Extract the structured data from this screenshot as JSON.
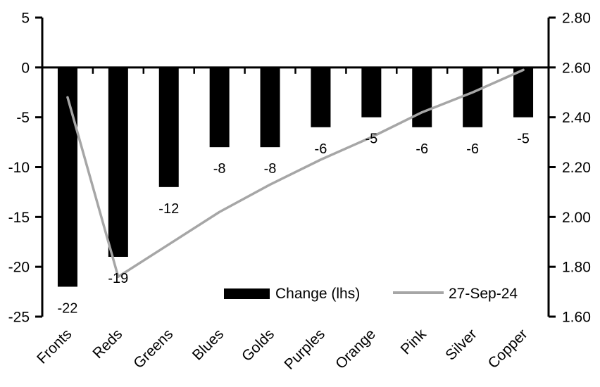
{
  "colors": {
    "bar": "#000000",
    "line": "#a6a6a6",
    "axis": "#000000",
    "text": "#000000",
    "background": "#ffffff"
  },
  "chart_data": {
    "type": "bar+line combo, dual axis",
    "title": "",
    "categories": [
      "Fronts",
      "Reds",
      "Greens",
      "Blues",
      "Golds",
      "Purples",
      "Orange",
      "Pink",
      "Silver",
      "Copper"
    ],
    "series": [
      {
        "name": "Change (lhs)",
        "type": "bar",
        "axis": "left",
        "color": "#000000",
        "values": [
          -22,
          -19,
          -12,
          -8,
          -8,
          -6,
          -5,
          -6,
          -6,
          -5
        ],
        "data_labels": [
          "-22",
          "-19",
          "-12",
          "-8",
          "-8",
          "-6",
          "-5",
          "-6",
          "-6",
          "-5"
        ]
      },
      {
        "name": "27-Sep-24",
        "type": "line",
        "axis": "right",
        "color": "#a6a6a6",
        "values": [
          2.48,
          1.76,
          1.89,
          2.02,
          2.13,
          2.23,
          2.32,
          2.42,
          2.5,
          2.59
        ]
      }
    ],
    "left_axis": {
      "min": -25,
      "max": 5,
      "ticks": [
        "5",
        "0",
        "-5",
        "-10",
        "-15",
        "-20",
        "-25"
      ],
      "tick_values": [
        5,
        0,
        -5,
        -10,
        -15,
        -20,
        -25
      ]
    },
    "right_axis": {
      "min": 1.6,
      "max": 2.8,
      "ticks": [
        "2.80",
        "2.60",
        "2.40",
        "2.20",
        "2.00",
        "1.80",
        "1.60"
      ],
      "tick_values": [
        2.8,
        2.6,
        2.4,
        2.2,
        2.0,
        1.8,
        1.6
      ]
    },
    "grid": false,
    "legend": {
      "position": "bottom-inside",
      "items": [
        {
          "label": "Change (lhs)",
          "swatch": "bar"
        },
        {
          "label": "27-Sep-24",
          "swatch": "line"
        }
      ]
    }
  }
}
